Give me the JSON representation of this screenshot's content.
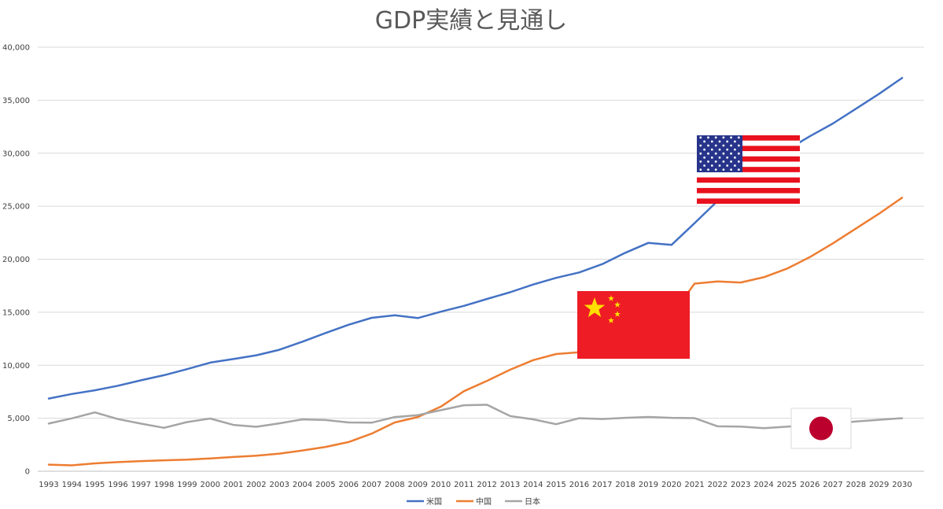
{
  "chart_data": {
    "type": "line",
    "title": "GDP実績と見通し",
    "xlabel": "",
    "ylabel": "",
    "ylim": [
      0,
      40000
    ],
    "yticks": [
      0,
      5000,
      10000,
      15000,
      20000,
      25000,
      30000,
      35000,
      40000
    ],
    "ytick_labels": [
      "0",
      "5,000",
      "10,000",
      "15,000",
      "20,000",
      "25,000",
      "30,000",
      "35,000",
      "40,000"
    ],
    "grid": true,
    "legend_position": "bottom",
    "x": [
      "1993",
      "1994",
      "1995",
      "1996",
      "1997",
      "1998",
      "1999",
      "2000",
      "2001",
      "2002",
      "2003",
      "2004",
      "2005",
      "2006",
      "2007",
      "2008",
      "2009",
      "2010",
      "2011",
      "2012",
      "2013",
      "2014",
      "2015",
      "2016",
      "2017",
      "2018",
      "2019",
      "2020",
      "2021",
      "2022",
      "2023",
      "2024",
      "2025",
      "2026",
      "2027",
      "2028",
      "2029",
      "2030"
    ],
    "series": [
      {
        "name": "米国",
        "color": "#4472C4",
        "values": [
          6860,
          7290,
          7640,
          8070,
          8580,
          9060,
          9630,
          10250,
          10580,
          10940,
          11460,
          12220,
          13040,
          13820,
          14470,
          14710,
          14450,
          15050,
          15600,
          16250,
          16880,
          17610,
          18240,
          18750,
          19540,
          20610,
          21540,
          21350,
          23400,
          25500,
          27000,
          28700,
          30300,
          31600,
          32800,
          34200,
          35600,
          37100
        ]
      },
      {
        "name": "中国",
        "color": "#ED7D31",
        "values": [
          620,
          560,
          740,
          860,
          960,
          1030,
          1090,
          1210,
          1340,
          1470,
          1660,
          1960,
          2290,
          2750,
          3550,
          4600,
          5110,
          6090,
          7550,
          8530,
          9570,
          10480,
          11060,
          11230,
          12300,
          13600,
          14300,
          14700,
          17700,
          17900,
          17800,
          18300,
          19100,
          20200,
          21500,
          22900,
          24300,
          25800
        ]
      },
      {
        "name": "日本",
        "color": "#A5A5A5",
        "values": [
          4500,
          4990,
          5550,
          4920,
          4490,
          4100,
          4640,
          4970,
          4370,
          4190,
          4520,
          4890,
          4830,
          4600,
          4580,
          5110,
          5290,
          5760,
          6230,
          6270,
          5210,
          4900,
          4440,
          5000,
          4930,
          5040,
          5120,
          5040,
          5010,
          4240,
          4210,
          4070,
          4200,
          4350,
          4500,
          4700,
          4850,
          5000
        ]
      }
    ],
    "icons": [
      "us-flag-icon",
      "china-flag-icon",
      "japan-flag-icon"
    ],
    "flag_colors": {
      "us_red": "#E8111D",
      "us_blue": "#27348B",
      "cn_red": "#EE1C25",
      "cn_star": "#FFDE00",
      "jp_red": "#BC002D"
    }
  }
}
